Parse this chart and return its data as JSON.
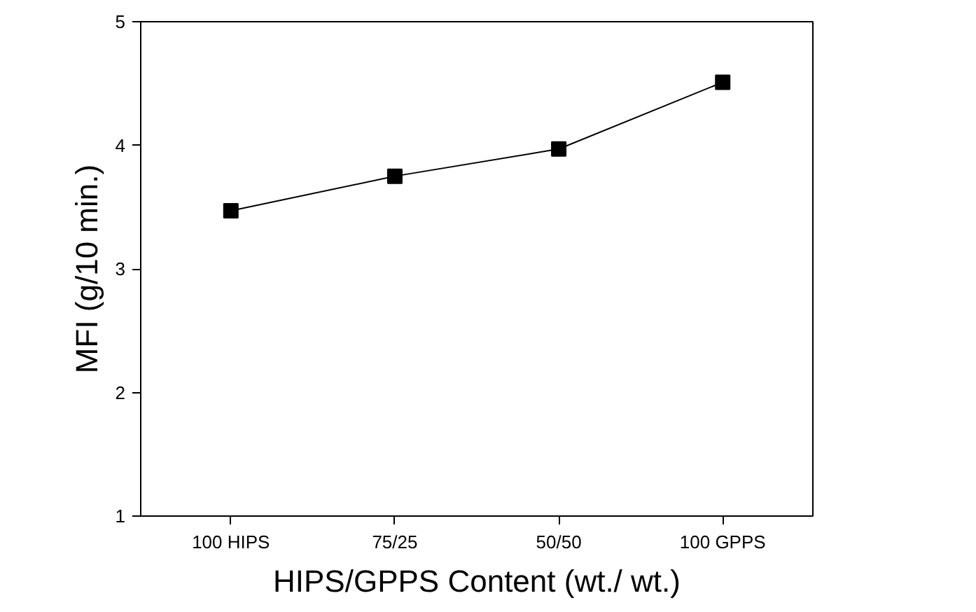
{
  "chart_data": {
    "type": "line",
    "xlabel": "HIPS/GPPS Content (wt./ wt.)",
    "ylabel": "MFI (g/10 min.)",
    "categories": [
      "100 HIPS",
      "75/25",
      "50/50",
      "100 GPPS"
    ],
    "series": [
      {
        "color": "#000000",
        "values": [
          3.47,
          3.75,
          3.97,
          4.51
        ]
      }
    ],
    "ylim": [
      1,
      5
    ],
    "yticks": [
      1,
      2,
      3,
      4,
      5
    ],
    "marker": "square",
    "line_style": "solid"
  }
}
